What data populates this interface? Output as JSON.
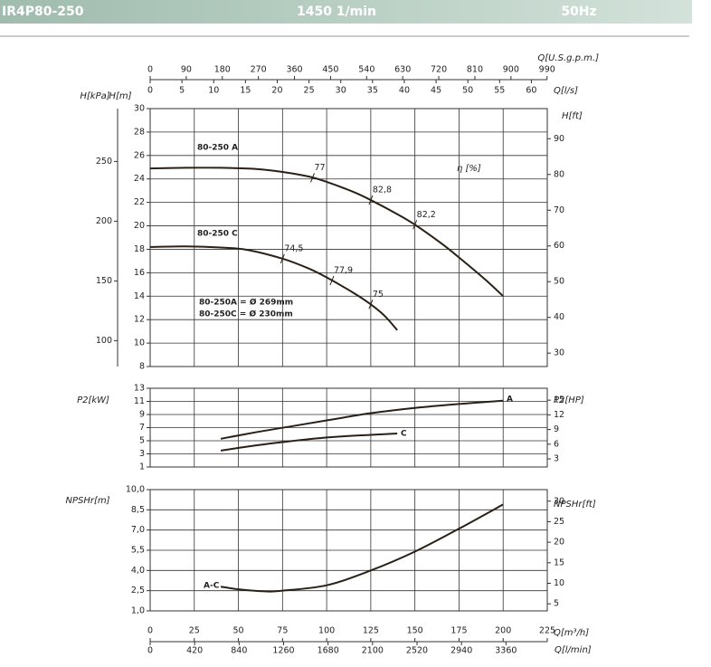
{
  "header": {
    "model": "IR4P80-250",
    "speed": "1450 1/min",
    "frequency": "50Hz"
  },
  "chart_data": [
    {
      "type": "line",
      "grid": true,
      "xlim": [
        0,
        225
      ],
      "top_axes": [
        {
          "label": "Q[U.S.g.p.m.]",
          "xlim": [
            0,
            990.6
          ],
          "xticks": [
            0,
            90,
            180,
            270,
            360,
            450,
            540,
            630,
            720,
            810,
            900,
            990
          ]
        },
        {
          "label": "Q[l/s]",
          "xlim": [
            0,
            62.5
          ],
          "xticks": [
            0,
            5,
            10,
            15,
            20,
            25,
            30,
            35,
            40,
            45,
            50,
            55,
            60
          ]
        }
      ],
      "ylabel": "H[m]",
      "ylim": [
        8,
        30
      ],
      "yticks": [
        8,
        10,
        12,
        14,
        16,
        18,
        20,
        22,
        24,
        26,
        28,
        30
      ],
      "left_outer_axis": {
        "label": "H[kPa]",
        "ylim": [
          78.45,
          294.2
        ],
        "yticks": [
          100,
          150,
          200,
          250
        ]
      },
      "y2label": "H[ft]",
      "y2lim": [
        26.25,
        98.43
      ],
      "y2ticks": [
        30,
        40,
        50,
        60,
        70,
        80,
        90
      ],
      "efficiency_label": "η [%]",
      "annotations": [
        "80-250A = Ø 269mm",
        "80-250C = Ø 230mm"
      ],
      "series": [
        {
          "name": "80-250 A",
          "color": "#2a2016",
          "x": [
            0,
            20,
            40,
            60,
            75,
            90,
            100,
            115,
            125,
            140,
            150,
            165,
            175,
            190,
            200
          ],
          "values": [
            24.9,
            24.95,
            24.95,
            24.85,
            24.6,
            24.2,
            23.75,
            22.9,
            22.2,
            21.0,
            20.1,
            18.5,
            17.3,
            15.4,
            14.0
          ],
          "efficiency": {
            "x": [
              92,
              125,
              150
            ],
            "values": [
              77,
              82.8,
              82.2
            ],
            "value_labels": [
              "77",
              "82,8",
              "82,2"
            ]
          }
        },
        {
          "name": "80-250 C",
          "color": "#2a2016",
          "x": [
            0,
            20,
            40,
            55,
            75,
            90,
            100,
            115,
            125,
            133,
            140
          ],
          "values": [
            18.2,
            18.25,
            18.15,
            17.95,
            17.2,
            16.35,
            15.6,
            14.3,
            13.3,
            12.3,
            11.1
          ],
          "efficiency": {
            "x": [
              75,
              103,
              125
            ],
            "values": [
              74.5,
              77.9,
              75
            ],
            "value_labels": [
              "74,5",
              "77,9",
              "75"
            ]
          }
        }
      ]
    },
    {
      "type": "line",
      "grid": true,
      "xlim": [
        0,
        225
      ],
      "ylabel": "P2[kW]",
      "ylim": [
        1,
        13
      ],
      "yticks": [
        1,
        3,
        5,
        7,
        9,
        11,
        13
      ],
      "y2label": "P2[HP]",
      "y2lim": [
        1.341,
        17.43
      ],
      "y2ticks": [
        3,
        6,
        9,
        12,
        15
      ],
      "series": [
        {
          "name": "A",
          "color": "#2a2016",
          "x": [
            40,
            60,
            80,
            100,
            125,
            150,
            175,
            200
          ],
          "values": [
            5.3,
            6.3,
            7.2,
            8.1,
            9.2,
            10.0,
            10.6,
            11.1
          ]
        },
        {
          "name": "C",
          "color": "#2a2016",
          "x": [
            40,
            60,
            75,
            100,
            125,
            140
          ],
          "values": [
            3.5,
            4.3,
            4.8,
            5.5,
            5.9,
            6.1
          ]
        }
      ]
    },
    {
      "type": "line",
      "grid": true,
      "xlim": [
        0,
        225
      ],
      "xlabel": "Q[m³/h]",
      "xticks": [
        0,
        25,
        50,
        75,
        100,
        125,
        150,
        175,
        200,
        225
      ],
      "bottom_axis": {
        "label": "Q[l/min]",
        "xlim": [
          0,
          3750
        ],
        "xticks": [
          0,
          420,
          840,
          1260,
          1680,
          2100,
          2520,
          2940,
          3360
        ]
      },
      "ylabel": "NPSHr[m]",
      "ylim": [
        1,
        10
      ],
      "yticks": [
        {
          "value": 1,
          "label": "1,0"
        },
        {
          "value": 2.5,
          "label": "2,5"
        },
        {
          "value": 4,
          "label": "4,0"
        },
        {
          "value": 5.5,
          "label": "5,5"
        },
        {
          "value": 7,
          "label": "7,0"
        },
        {
          "value": 8.5,
          "label": "8,5"
        },
        {
          "value": 10,
          "label": "10,0"
        }
      ],
      "y2label": "NPSHr[ft]",
      "y2lim": [
        3.281,
        32.81
      ],
      "y2ticks": [
        5,
        10,
        15,
        20,
        25,
        30
      ],
      "series": [
        {
          "name": "A-C",
          "color": "#2a2016",
          "x": [
            40,
            50,
            65,
            75,
            100,
            125,
            150,
            175,
            200
          ],
          "values": [
            2.8,
            2.6,
            2.45,
            2.5,
            2.9,
            4.0,
            5.4,
            7.1,
            8.9
          ]
        }
      ]
    }
  ]
}
